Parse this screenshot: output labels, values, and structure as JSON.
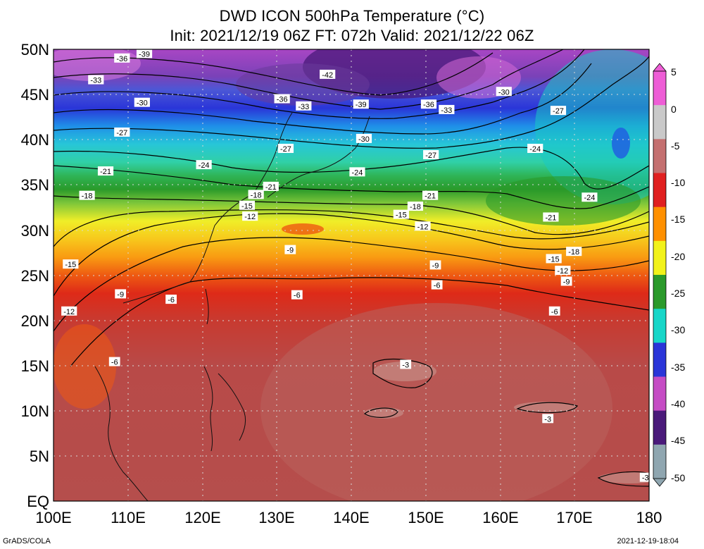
{
  "title": {
    "line1": "DWD ICON 500hPa Temperature (°C)",
    "line2": "Init: 2021/12/19 06Z  FT: 072h  Valid: 2021/12/22 06Z"
  },
  "map": {
    "lon_range": [
      100,
      180
    ],
    "lat_range": [
      0,
      50
    ],
    "lat_labels": [
      "EQ",
      "5N",
      "10N",
      "15N",
      "20N",
      "25N",
      "30N",
      "35N",
      "40N",
      "45N",
      "50N"
    ],
    "lon_labels": [
      "100E",
      "110E",
      "120E",
      "130E",
      "140E",
      "150E",
      "160E",
      "170E",
      "180"
    ],
    "grid": true
  },
  "colorbar": {
    "labels": [
      "5",
      "0",
      "-5",
      "-10",
      "-15",
      "-20",
      "-25",
      "-30",
      "-35",
      "-40",
      "-45",
      "-50"
    ],
    "levels": [
      5,
      0,
      -5,
      -10,
      -15,
      -20,
      -25,
      -30,
      -35,
      -40,
      -45,
      -50
    ],
    "colors": [
      "#ee5ed6",
      "#c9c9c9",
      "#c47070",
      "#e02020",
      "#ff9000",
      "#f2f21a",
      "#2b9a2b",
      "#18d6c8",
      "#2a35d8",
      "#c54cc4",
      "#4a1a7a",
      "#8fa6b0"
    ]
  },
  "contour_labels": [
    {
      "text": "-39",
      "lon": 112.2,
      "lat": 49.5
    },
    {
      "text": "-36",
      "lon": 109.2,
      "lat": 49.0
    },
    {
      "text": "-42",
      "lon": 136.8,
      "lat": 47.2
    },
    {
      "text": "-33",
      "lon": 105.7,
      "lat": 46.6
    },
    {
      "text": "-30",
      "lon": 160.5,
      "lat": 45.3
    },
    {
      "text": "-36",
      "lon": 130.7,
      "lat": 44.5
    },
    {
      "text": "-39",
      "lon": 141.3,
      "lat": 43.9
    },
    {
      "text": "-36",
      "lon": 150.4,
      "lat": 43.9
    },
    {
      "text": "-33",
      "lon": 133.6,
      "lat": 43.7
    },
    {
      "text": "-33",
      "lon": 152.8,
      "lat": 43.3
    },
    {
      "text": "-30",
      "lon": 111.9,
      "lat": 44.1
    },
    {
      "text": "-27",
      "lon": 167.8,
      "lat": 43.2
    },
    {
      "text": "-27",
      "lon": 109.2,
      "lat": 40.8
    },
    {
      "text": "-30",
      "lon": 141.7,
      "lat": 40.1
    },
    {
      "text": "-27",
      "lon": 131.2,
      "lat": 39.0
    },
    {
      "text": "-24",
      "lon": 164.7,
      "lat": 39.0
    },
    {
      "text": "-27",
      "lon": 150.7,
      "lat": 38.3
    },
    {
      "text": "-24",
      "lon": 120.2,
      "lat": 37.2
    },
    {
      "text": "-21",
      "lon": 107.0,
      "lat": 36.5
    },
    {
      "text": "-24",
      "lon": 140.8,
      "lat": 36.4
    },
    {
      "text": "-21",
      "lon": 129.2,
      "lat": 34.8
    },
    {
      "text": "-18",
      "lon": 104.5,
      "lat": 33.8
    },
    {
      "text": "-18",
      "lon": 127.2,
      "lat": 33.9
    },
    {
      "text": "-21",
      "lon": 150.6,
      "lat": 33.8
    },
    {
      "text": "-24",
      "lon": 172.0,
      "lat": 33.6
    },
    {
      "text": "-15",
      "lon": 126.0,
      "lat": 32.7
    },
    {
      "text": "-18",
      "lon": 148.6,
      "lat": 32.6
    },
    {
      "text": "-15",
      "lon": 146.7,
      "lat": 31.7
    },
    {
      "text": "-12",
      "lon": 126.4,
      "lat": 31.5
    },
    {
      "text": "-21",
      "lon": 166.8,
      "lat": 31.4
    },
    {
      "text": "-12",
      "lon": 149.6,
      "lat": 30.4
    },
    {
      "text": "-9",
      "lon": 131.8,
      "lat": 27.8
    },
    {
      "text": "-18",
      "lon": 169.9,
      "lat": 27.6
    },
    {
      "text": "-15",
      "lon": 167.2,
      "lat": 26.8
    },
    {
      "text": "-15",
      "lon": 102.3,
      "lat": 26.2
    },
    {
      "text": "-9",
      "lon": 151.3,
      "lat": 26.1
    },
    {
      "text": "-12",
      "lon": 168.4,
      "lat": 25.5
    },
    {
      "text": "-9",
      "lon": 168.9,
      "lat": 24.3
    },
    {
      "text": "-6",
      "lon": 151.5,
      "lat": 23.9
    },
    {
      "text": "-9",
      "lon": 109.0,
      "lat": 22.9
    },
    {
      "text": "-6",
      "lon": 132.7,
      "lat": 22.8
    },
    {
      "text": "-6",
      "lon": 115.8,
      "lat": 22.3
    },
    {
      "text": "-12",
      "lon": 102.1,
      "lat": 21.0
    },
    {
      "text": "-6",
      "lon": 167.3,
      "lat": 21.0
    },
    {
      "text": "-6",
      "lon": 108.2,
      "lat": 15.4
    },
    {
      "text": "-3",
      "lon": 147.3,
      "lat": 15.1
    },
    {
      "text": "-3",
      "lon": 166.4,
      "lat": 9.1
    },
    {
      "text": "-3",
      "lon": 179.5,
      "lat": 2.6
    }
  ],
  "footer": {
    "left": "GrADS/COLA",
    "right": "2021-12-19-18:04"
  }
}
